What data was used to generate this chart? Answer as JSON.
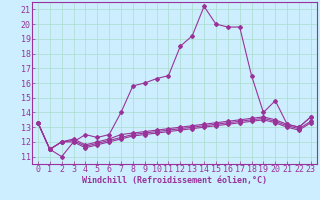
{
  "xlabel": "Windchill (Refroidissement éolien,°C)",
  "bg_color": "#cceeff",
  "line_color": "#993399",
  "grid_color": "#aaddcc",
  "x_ticks": [
    0,
    1,
    2,
    3,
    4,
    5,
    6,
    7,
    8,
    9,
    10,
    11,
    12,
    13,
    14,
    15,
    16,
    17,
    18,
    19,
    20,
    21,
    22,
    23
  ],
  "y_ticks": [
    11,
    12,
    13,
    14,
    15,
    16,
    17,
    18,
    19,
    20,
    21
  ],
  "xlim": [
    -0.5,
    23.5
  ],
  "ylim": [
    10.5,
    21.5
  ],
  "line1_y": [
    13.3,
    11.5,
    11.0,
    12.0,
    12.5,
    12.3,
    12.5,
    14.0,
    15.8,
    16.0,
    16.3,
    16.5,
    18.5,
    19.2,
    21.2,
    20.0,
    19.8,
    19.8,
    16.5,
    14.0,
    14.8,
    13.2,
    13.0,
    13.7
  ],
  "line2_y": [
    13.3,
    11.5,
    12.0,
    12.2,
    11.8,
    12.0,
    12.2,
    12.5,
    12.6,
    12.7,
    12.8,
    12.9,
    13.0,
    13.1,
    13.2,
    13.3,
    13.4,
    13.5,
    13.6,
    13.7,
    13.5,
    13.2,
    13.0,
    13.7
  ],
  "line3_y": [
    13.3,
    11.5,
    12.0,
    12.1,
    11.7,
    11.9,
    12.1,
    12.3,
    12.5,
    12.6,
    12.7,
    12.8,
    12.9,
    13.0,
    13.1,
    13.2,
    13.3,
    13.4,
    13.5,
    13.6,
    13.4,
    13.1,
    12.9,
    13.4
  ],
  "line4_y": [
    13.3,
    11.5,
    12.0,
    12.0,
    11.6,
    11.8,
    12.0,
    12.2,
    12.4,
    12.5,
    12.6,
    12.7,
    12.8,
    12.9,
    13.0,
    13.1,
    13.2,
    13.3,
    13.4,
    13.5,
    13.3,
    13.0,
    12.8,
    13.3
  ],
  "tick_fontsize": 6,
  "xlabel_fontsize": 6,
  "marker_size": 2.0
}
